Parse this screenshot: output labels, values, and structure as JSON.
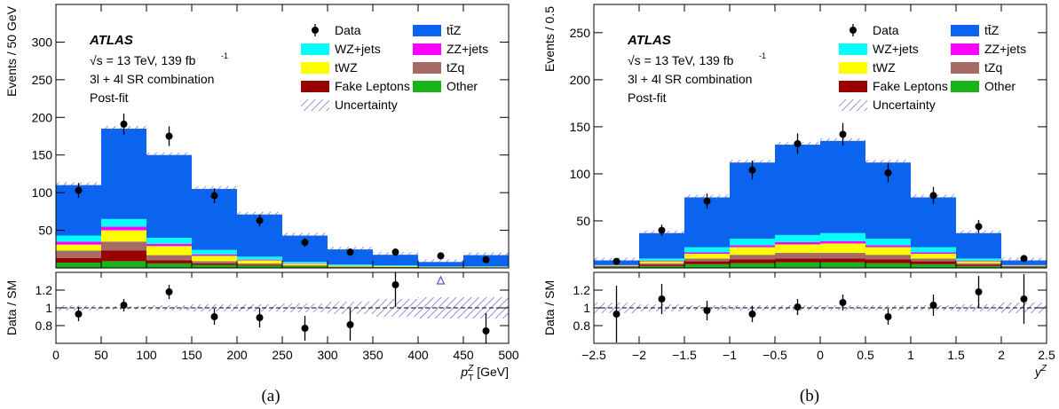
{
  "colors": {
    "ttZ": "#0a64f0",
    "WZjets": "#00ffff",
    "ZZjets": "#ff00ff",
    "tWZ": "#ffff00",
    "tZq": "#a66b66",
    "fake": "#990000",
    "other": "#19b219",
    "uncertainty": "#5a5ad6",
    "data": "#000000"
  },
  "legend": {
    "data": "Data",
    "ttZ": "tt̄Z",
    "WZjets": "WZ+jets",
    "ZZjets": "ZZ+jets",
    "tWZ": "tWZ",
    "tZq": "tZq",
    "fake": "Fake Leptons",
    "other": "Other",
    "uncertainty": "Uncertainty"
  },
  "labels": {
    "atlas": "ATLAS",
    "energy_prefix": "√s = 13 TeV, 139 fb",
    "energy_sup": "-1",
    "selection": "3l + 4l SR combination",
    "postfit": "Post-fit"
  },
  "chart_data": [
    {
      "type": "bar",
      "stacked": true,
      "panel": "(a)",
      "ylabel": "Events / 50 GeV",
      "ratio_ylabel": "Data / SM",
      "xlabel": "p_T^Z [GeV]",
      "xlim": [
        0,
        500
      ],
      "ylim": [
        0,
        350
      ],
      "ratio_ylim": [
        0.6,
        1.4
      ],
      "xticks": [
        0,
        50,
        100,
        150,
        200,
        250,
        300,
        350,
        400,
        450,
        500
      ],
      "yticks": [
        50,
        100,
        150,
        200,
        250,
        300
      ],
      "ratio_yticks": [
        0.8,
        1,
        1.2
      ],
      "bin_edges": [
        0,
        50,
        100,
        150,
        200,
        250,
        300,
        350,
        400,
        450,
        500
      ],
      "series": [
        {
          "name": "Other",
          "key": "other",
          "values": [
            7,
            9,
            6,
            4,
            3,
            2,
            1,
            1,
            0.5,
            0.5
          ]
        },
        {
          "name": "Fake Leptons",
          "key": "fake",
          "values": [
            6,
            14,
            4,
            2,
            1,
            0.5,
            0.3,
            0.2,
            0.1,
            0.1
          ]
        },
        {
          "name": "tZq",
          "key": "tZq",
          "values": [
            10,
            12,
            7,
            3,
            2,
            1,
            0.5,
            0.3,
            0.2,
            0.2
          ]
        },
        {
          "name": "tWZ",
          "key": "tWZ",
          "values": [
            8,
            15,
            12,
            7,
            4,
            2,
            1,
            0.8,
            0.5,
            0.6
          ]
        },
        {
          "name": "ZZ+jets",
          "key": "ZZjets",
          "values": [
            4,
            5,
            3,
            2,
            1,
            0.5,
            0.3,
            0.2,
            0.1,
            0.1
          ]
        },
        {
          "name": "WZ+jets",
          "key": "WZjets",
          "values": [
            8,
            10,
            8,
            6,
            4,
            2,
            1.5,
            1,
            0.5,
            0.5
          ]
        },
        {
          "name": "tt̄Z",
          "key": "ttZ",
          "values": [
            67,
            120,
            110,
            81,
            56,
            35,
            20,
            14,
            6,
            15
          ]
        }
      ],
      "totals": [
        110,
        185,
        150,
        105,
        71,
        43,
        24.6,
        17.5,
        7.9,
        17
      ],
      "data": {
        "x": [
          25,
          75,
          125,
          175,
          225,
          275,
          325,
          375,
          425,
          475
        ],
        "y": [
          103,
          191,
          175,
          96,
          63,
          34,
          21,
          21,
          16,
          11
        ],
        "err": [
          10,
          14,
          13,
          10,
          8,
          6,
          5,
          5,
          4,
          3
        ]
      },
      "ratio": {
        "x": [
          25,
          75,
          125,
          175,
          225,
          275,
          325,
          375,
          475
        ],
        "y": [
          0.93,
          1.03,
          1.18,
          0.9,
          0.89,
          0.77,
          0.81,
          1.26,
          0.74
        ],
        "err": [
          0.08,
          0.07,
          0.08,
          0.09,
          0.11,
          0.14,
          0.18,
          0.25,
          0.2
        ],
        "band": [
          0.03,
          0.02,
          0.03,
          0.04,
          0.04,
          0.05,
          0.07,
          0.1,
          0.12,
          0.12
        ],
        "arrow_x": 425
      }
    },
    {
      "type": "bar",
      "stacked": true,
      "panel": "(b)",
      "ylabel": "Events / 0.5",
      "ratio_ylabel": "Data / SM",
      "xlabel": "y^Z",
      "xlim": [
        -2.5,
        2.5
      ],
      "ylim": [
        0,
        280
      ],
      "ratio_ylim": [
        0.6,
        1.4
      ],
      "xticks": [
        -2.5,
        -2,
        -1.5,
        -1,
        -0.5,
        0,
        0.5,
        1,
        1.5,
        2,
        2.5
      ],
      "yticks": [
        50,
        100,
        150,
        200,
        250
      ],
      "ratio_yticks": [
        0.8,
        1,
        1.2
      ],
      "bin_edges": [
        -2.5,
        -2,
        -1.5,
        -1,
        -0.5,
        0,
        0.5,
        1,
        1.5,
        2,
        2.5
      ],
      "series": [
        {
          "name": "Other",
          "key": "other",
          "values": [
            1,
            2,
            4,
            5,
            6,
            6,
            5,
            4,
            2,
            1
          ]
        },
        {
          "name": "Fake Leptons",
          "key": "fake",
          "values": [
            0.5,
            1.5,
            3,
            4,
            4,
            4,
            4,
            3,
            1.5,
            0.5
          ]
        },
        {
          "name": "tZq",
          "key": "tZq",
          "values": [
            0.5,
            1.5,
            3,
            5,
            6,
            6,
            5,
            3,
            1.5,
            0.5
          ]
        },
        {
          "name": "tWZ",
          "key": "tWZ",
          "values": [
            0.5,
            2,
            5,
            8,
            9,
            10,
            8,
            5,
            2,
            0.5
          ]
        },
        {
          "name": "ZZ+jets",
          "key": "ZZjets",
          "values": [
            0.2,
            0.8,
            1.5,
            2,
            2.5,
            2.5,
            2,
            1.5,
            0.8,
            0.2
          ]
        },
        {
          "name": "WZ+jets",
          "key": "WZjets",
          "values": [
            0.3,
            2.2,
            5.5,
            7,
            7.5,
            8.5,
            7,
            5.5,
            2.2,
            0.3
          ]
        },
        {
          "name": "tt̄Z",
          "key": "ttZ",
          "values": [
            5,
            27,
            53,
            81,
            96,
            98,
            81,
            53,
            27,
            5
          ]
        }
      ],
      "totals": [
        8,
        37,
        75,
        112,
        131,
        135,
        112,
        75,
        37,
        8
      ],
      "data": {
        "x": [
          -2.25,
          -1.75,
          -1.25,
          -0.75,
          -0.25,
          0.25,
          0.75,
          1.25,
          1.75,
          2.25
        ],
        "y": [
          7,
          40,
          71,
          104,
          132,
          142,
          101,
          77,
          44,
          10
        ],
        "err": [
          3,
          6,
          8,
          10,
          11,
          12,
          10,
          9,
          7,
          3
        ]
      },
      "ratio": {
        "x": [
          -2.25,
          -1.75,
          -1.25,
          -0.75,
          -0.25,
          0.25,
          0.75,
          1.25,
          1.75,
          2.25
        ],
        "y": [
          0.93,
          1.1,
          0.97,
          0.93,
          1.01,
          1.06,
          0.9,
          1.03,
          1.18,
          1.1
        ],
        "err": [
          0.32,
          0.17,
          0.11,
          0.09,
          0.09,
          0.09,
          0.09,
          0.12,
          0.18,
          0.28
        ],
        "band": [
          0.06,
          0.04,
          0.03,
          0.03,
          0.03,
          0.03,
          0.03,
          0.03,
          0.04,
          0.06
        ]
      }
    }
  ]
}
